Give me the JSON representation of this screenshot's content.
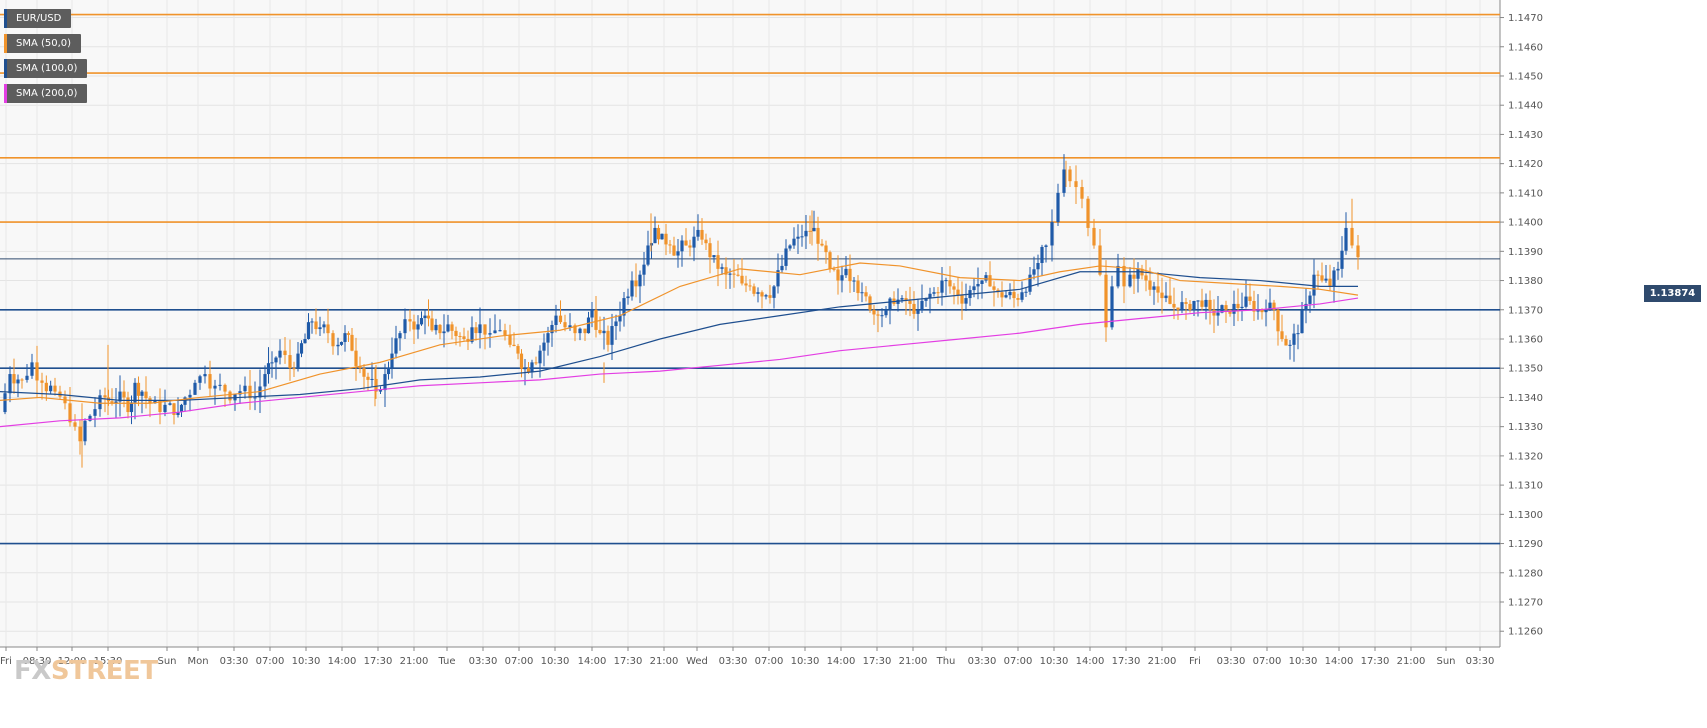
{
  "legend": [
    {
      "label": "EUR/USD",
      "color": "#1f4f8f"
    },
    {
      "label": "SMA (50,0)",
      "color": "#f0932b"
    },
    {
      "label": "SMA (100,0)",
      "color": "#1f4f8f"
    },
    {
      "label": "SMA (200,0)",
      "color": "#e33ee3"
    }
  ],
  "logo": {
    "part1": "FX",
    "part2": "STREET"
  },
  "price_badge": "1.13874",
  "chart_data": {
    "type": "candlestick",
    "title": "EUR/USD",
    "ylim": [
      1.1255,
      1.148
    ],
    "y_ticks": [
      "1.1470",
      "1.1460",
      "1.1450",
      "1.1440",
      "1.1430",
      "1.1420",
      "1.1410",
      "1.1400",
      "1.1390",
      "1.1380",
      "1.1370",
      "1.1360",
      "1.1350",
      "1.1340",
      "1.1330",
      "1.1320",
      "1.1310",
      "1.1300",
      "1.1290",
      "1.1280",
      "1.1270",
      "1.1260"
    ],
    "x_ticks": [
      "Fri",
      "08:30",
      "12:00",
      "15:30",
      "Sun",
      "Mon",
      "03:30",
      "07:00",
      "10:30",
      "14:00",
      "17:30",
      "21:00",
      "Tue",
      "03:30",
      "07:00",
      "10:30",
      "14:00",
      "17:30",
      "21:00",
      "Wed",
      "03:30",
      "07:00",
      "10:30",
      "14:00",
      "17:30",
      "21:00",
      "Thu",
      "03:30",
      "07:00",
      "10:30",
      "14:00",
      "17:30",
      "21:00",
      "Fri",
      "03:30",
      "07:00",
      "10:30",
      "14:00",
      "17:30",
      "21:00",
      "Sun",
      "03:30"
    ],
    "resistance_levels": [
      1.1471,
      1.1451,
      1.1422,
      1.14
    ],
    "support_levels": [
      1.137,
      1.135,
      1.129
    ],
    "current_price": 1.13874,
    "grid": true,
    "legend_position": "top-left",
    "colors": {
      "up": "#1f5aa8",
      "down": "#f0932b",
      "sma50": "#f0932b",
      "sma100": "#1f4f8f",
      "sma200": "#e33ee3",
      "resistance": "#f0932b",
      "support": "#1f4f8f"
    },
    "close_path": [
      [
        0,
        1.1335
      ],
      [
        10,
        1.1348
      ],
      [
        22,
        1.1346
      ],
      [
        32,
        1.1352
      ],
      [
        42,
        1.1345
      ],
      [
        55,
        1.1342
      ],
      [
        65,
        1.1338
      ],
      [
        75,
        1.133
      ],
      [
        80,
        1.1325
      ],
      [
        85,
        1.1332
      ],
      [
        95,
        1.1336
      ],
      [
        105,
        1.134
      ],
      [
        112,
        1.1338
      ],
      [
        120,
        1.1342
      ],
      [
        128,
        1.1335
      ],
      [
        135,
        1.1345
      ],
      [
        142,
        1.1342
      ],
      [
        150,
        1.1338
      ],
      [
        160,
        1.1335
      ],
      [
        170,
        1.1338
      ],
      [
        178,
        1.1335
      ],
      [
        185,
        1.134
      ],
      [
        195,
        1.1345
      ],
      [
        205,
        1.1348
      ],
      [
        215,
        1.1344
      ],
      [
        225,
        1.1342
      ],
      [
        235,
        1.1341
      ],
      [
        245,
        1.1344
      ],
      [
        255,
        1.134
      ],
      [
        265,
        1.1348
      ],
      [
        272,
        1.1352
      ],
      [
        280,
        1.1356
      ],
      [
        290,
        1.135
      ],
      [
        298,
        1.1355
      ],
      [
        305,
        1.136
      ],
      [
        312,
        1.1366
      ],
      [
        320,
        1.1364
      ],
      [
        328,
        1.1362
      ],
      [
        338,
        1.1358
      ],
      [
        345,
        1.1362
      ],
      [
        352,
        1.1356
      ],
      [
        360,
        1.135
      ],
      [
        368,
        1.1346
      ],
      [
        376,
        1.1342
      ],
      [
        385,
        1.1348
      ],
      [
        392,
        1.1355
      ],
      [
        400,
        1.1362
      ],
      [
        410,
        1.1366
      ],
      [
        418,
        1.1365
      ],
      [
        425,
        1.1368
      ],
      [
        432,
        1.1363
      ],
      [
        440,
        1.1362
      ],
      [
        448,
        1.1365
      ],
      [
        456,
        1.1361
      ],
      [
        464,
        1.136
      ],
      [
        472,
        1.1364
      ],
      [
        480,
        1.1365
      ],
      [
        490,
        1.1362
      ],
      [
        500,
        1.1363
      ],
      [
        510,
        1.1358
      ],
      [
        518,
        1.1355
      ],
      [
        525,
        1.135
      ],
      [
        532,
        1.1352
      ],
      [
        540,
        1.1356
      ],
      [
        548,
        1.1362
      ],
      [
        556,
        1.1368
      ],
      [
        565,
        1.1364
      ],
      [
        575,
        1.1362
      ],
      [
        585,
        1.1362
      ],
      [
        592,
        1.137
      ],
      [
        600,
        1.1362
      ],
      [
        608,
        1.1358
      ],
      [
        616,
        1.1366
      ],
      [
        624,
        1.1374
      ],
      [
        632,
        1.138
      ],
      [
        640,
        1.1382
      ],
      [
        648,
        1.1392
      ],
      [
        655,
        1.1398
      ],
      [
        662,
        1.1396
      ],
      [
        670,
        1.1392
      ],
      [
        678,
        1.139
      ],
      [
        686,
        1.1392
      ],
      [
        694,
        1.1395
      ],
      [
        702,
        1.1394
      ],
      [
        710,
        1.1388
      ],
      [
        718,
        1.1384
      ],
      [
        726,
        1.1382
      ],
      [
        734,
        1.1382
      ],
      [
        742,
        1.1379
      ],
      [
        750,
        1.1378
      ],
      [
        758,
        1.1376
      ],
      [
        766,
        1.1375
      ],
      [
        774,
        1.1378
      ],
      [
        782,
        1.1385
      ],
      [
        790,
        1.1392
      ],
      [
        798,
        1.1395
      ],
      [
        806,
        1.1397
      ],
      [
        814,
        1.1398
      ],
      [
        822,
        1.1392
      ],
      [
        830,
        1.1384
      ],
      [
        838,
        1.138
      ],
      [
        846,
        1.1384
      ],
      [
        854,
        1.138
      ],
      [
        862,
        1.1376
      ],
      [
        870,
        1.137
      ],
      [
        878,
        1.1368
      ],
      [
        886,
        1.137
      ],
      [
        894,
        1.1372
      ],
      [
        902,
        1.1374
      ],
      [
        910,
        1.1372
      ],
      [
        918,
        1.137
      ],
      [
        926,
        1.1374
      ],
      [
        934,
        1.1376
      ],
      [
        942,
        1.138
      ],
      [
        950,
        1.1378
      ],
      [
        958,
        1.1375
      ],
      [
        966,
        1.1374
      ],
      [
        974,
        1.1378
      ],
      [
        982,
        1.138
      ],
      [
        990,
        1.1378
      ],
      [
        998,
        1.1376
      ],
      [
        1006,
        1.1375
      ],
      [
        1014,
        1.1374
      ],
      [
        1022,
        1.1376
      ],
      [
        1030,
        1.1382
      ],
      [
        1038,
        1.1386
      ],
      [
        1046,
        1.1392
      ],
      [
        1052,
        1.14
      ],
      [
        1058,
        1.141
      ],
      [
        1064,
        1.1418
      ],
      [
        1070,
        1.1414
      ],
      [
        1076,
        1.1412
      ],
      [
        1082,
        1.1408
      ],
      [
        1088,
        1.1398
      ],
      [
        1094,
        1.1392
      ],
      [
        1100,
        1.1382
      ],
      [
        1106,
        1.1364
      ],
      [
        1112,
        1.1378
      ],
      [
        1118,
        1.1385
      ],
      [
        1124,
        1.1378
      ],
      [
        1130,
        1.1382
      ],
      [
        1138,
        1.1384
      ],
      [
        1146,
        1.138
      ],
      [
        1154,
        1.1378
      ],
      [
        1162,
        1.1374
      ],
      [
        1170,
        1.1372
      ],
      [
        1178,
        1.137
      ],
      [
        1186,
        1.1372
      ],
      [
        1194,
        1.1373
      ],
      [
        1202,
        1.1371
      ],
      [
        1210,
        1.137
      ],
      [
        1218,
        1.1369
      ],
      [
        1226,
        1.137
      ],
      [
        1234,
        1.1372
      ],
      [
        1242,
        1.1371
      ],
      [
        1250,
        1.1373
      ],
      [
        1258,
        1.137
      ],
      [
        1266,
        1.137
      ],
      [
        1274,
        1.137
      ],
      [
        1282,
        1.136
      ],
      [
        1290,
        1.1358
      ],
      [
        1298,
        1.1362
      ],
      [
        1306,
        1.1372
      ],
      [
        1314,
        1.1382
      ],
      [
        1322,
        1.138
      ],
      [
        1330,
        1.1378
      ],
      [
        1338,
        1.1384
      ],
      [
        1346,
        1.1398
      ],
      [
        1352,
        1.1392
      ],
      [
        1358,
        1.1388
      ]
    ],
    "sma50_path": [
      [
        0,
        1.1339
      ],
      [
        40,
        1.134
      ],
      [
        100,
        1.1338
      ],
      [
        150,
        1.1338
      ],
      [
        200,
        1.134
      ],
      [
        260,
        1.1342
      ],
      [
        320,
        1.1348
      ],
      [
        380,
        1.1352
      ],
      [
        440,
        1.1358
      ],
      [
        500,
        1.1361
      ],
      [
        560,
        1.1363
      ],
      [
        620,
        1.1368
      ],
      [
        680,
        1.1378
      ],
      [
        740,
        1.1384
      ],
      [
        800,
        1.1382
      ],
      [
        860,
        1.1386
      ],
      [
        900,
        1.1385
      ],
      [
        960,
        1.1381
      ],
      [
        1020,
        1.138
      ],
      [
        1060,
        1.1383
      ],
      [
        1100,
        1.1385
      ],
      [
        1140,
        1.1384
      ],
      [
        1180,
        1.138
      ],
      [
        1230,
        1.1379
      ],
      [
        1280,
        1.1378
      ],
      [
        1320,
        1.1377
      ],
      [
        1358,
        1.1375
      ]
    ],
    "sma100_path": [
      [
        0,
        1.1342
      ],
      [
        60,
        1.1341
      ],
      [
        120,
        1.1339
      ],
      [
        180,
        1.1339
      ],
      [
        240,
        1.134
      ],
      [
        300,
        1.1341
      ],
      [
        360,
        1.1343
      ],
      [
        420,
        1.1346
      ],
      [
        480,
        1.1347
      ],
      [
        540,
        1.1349
      ],
      [
        600,
        1.1354
      ],
      [
        660,
        1.136
      ],
      [
        720,
        1.1365
      ],
      [
        780,
        1.1368
      ],
      [
        840,
        1.1371
      ],
      [
        900,
        1.1373
      ],
      [
        960,
        1.1375
      ],
      [
        1020,
        1.1377
      ],
      [
        1080,
        1.1383
      ],
      [
        1140,
        1.1383
      ],
      [
        1200,
        1.1381
      ],
      [
        1260,
        1.138
      ],
      [
        1320,
        1.1378
      ],
      [
        1358,
        1.1378
      ]
    ],
    "sma200_path": [
      [
        0,
        1.133
      ],
      [
        60,
        1.1332
      ],
      [
        120,
        1.1333
      ],
      [
        180,
        1.1335
      ],
      [
        240,
        1.1338
      ],
      [
        300,
        1.134
      ],
      [
        360,
        1.1342
      ],
      [
        420,
        1.1344
      ],
      [
        480,
        1.1345
      ],
      [
        540,
        1.1346
      ],
      [
        600,
        1.1348
      ],
      [
        660,
        1.1349
      ],
      [
        720,
        1.1351
      ],
      [
        780,
        1.1353
      ],
      [
        840,
        1.1356
      ],
      [
        900,
        1.1358
      ],
      [
        960,
        1.136
      ],
      [
        1020,
        1.1362
      ],
      [
        1080,
        1.1365
      ],
      [
        1140,
        1.1367
      ],
      [
        1200,
        1.1369
      ],
      [
        1260,
        1.137
      ],
      [
        1320,
        1.1372
      ],
      [
        1358,
        1.1374
      ]
    ]
  }
}
